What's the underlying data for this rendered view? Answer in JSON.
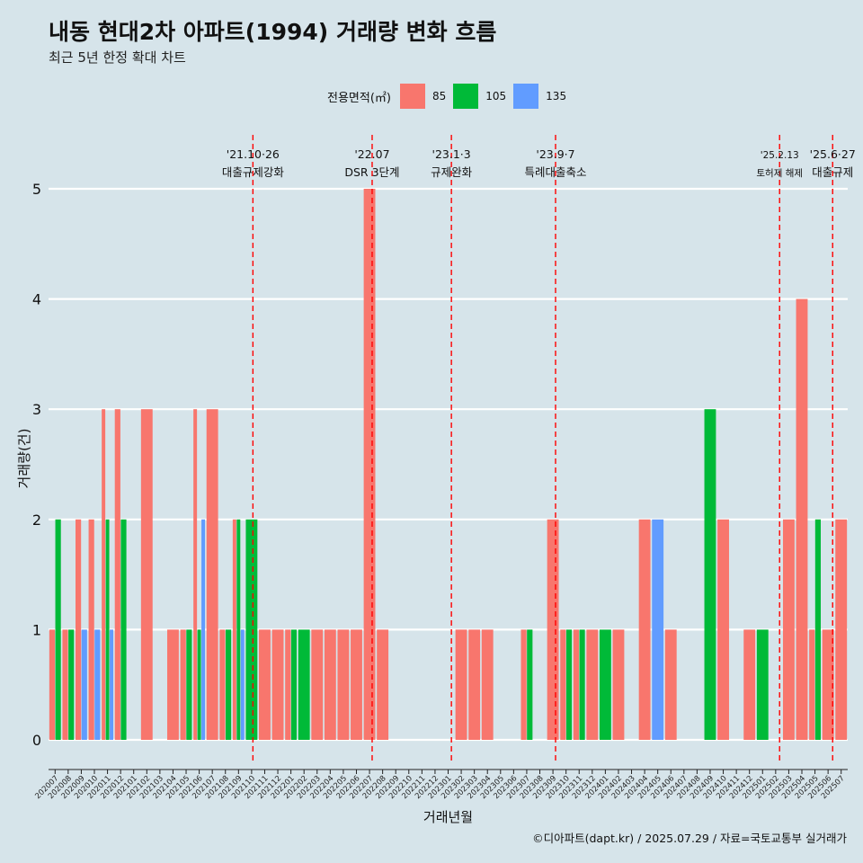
{
  "title": "내동 현대2차 아파트(1994) 거래량 변화 흐름",
  "subtitle": "최근 5년 한정 확대 차트",
  "caption": "©디아파트(dapt.kr) / 2025.07.29 / 자료=국토교통부 실거래가",
  "legend": {
    "title": "전용면적(㎡)",
    "items": [
      {
        "label": "85",
        "color": "#f8766d"
      },
      {
        "label": "105",
        "color": "#00ba38"
      },
      {
        "label": "135",
        "color": "#619cff"
      }
    ]
  },
  "chart_data": {
    "type": "bar",
    "xlabel": "거래년월",
    "ylabel": "거래량(건)",
    "ylim": [
      0,
      5
    ],
    "yticks": [
      0,
      1,
      2,
      3,
      4,
      5
    ],
    "categories": [
      "202007",
      "202008",
      "202009",
      "202010",
      "202011",
      "202012",
      "202101",
      "202102",
      "202103",
      "202104",
      "202105",
      "202106",
      "202107",
      "202108",
      "202109",
      "202110",
      "202111",
      "202112",
      "202201",
      "202202",
      "202203",
      "202204",
      "202205",
      "202206",
      "202207",
      "202208",
      "202209",
      "202210",
      "202211",
      "202212",
      "202301",
      "202302",
      "202303",
      "202304",
      "202305",
      "202306",
      "202307",
      "202308",
      "202309",
      "202310",
      "202311",
      "202312",
      "202401",
      "202402",
      "202403",
      "202404",
      "202405",
      "202406",
      "202407",
      "202408",
      "202409",
      "202410",
      "202411",
      "202412",
      "202501",
      "202502",
      "202503",
      "202504",
      "202505",
      "202506",
      "202507"
    ],
    "bars": [
      {
        "month": "202007",
        "size": "85",
        "value": 1,
        "slot": 0,
        "of": 2
      },
      {
        "month": "202007",
        "size": "105",
        "value": 2,
        "slot": 1,
        "of": 2
      },
      {
        "month": "202008",
        "size": "85",
        "value": 1,
        "slot": 0,
        "of": 2
      },
      {
        "month": "202008",
        "size": "105",
        "value": 1,
        "slot": 1,
        "of": 2
      },
      {
        "month": "202009",
        "size": "85",
        "value": 2,
        "slot": 0,
        "of": 2
      },
      {
        "month": "202009",
        "size": "135",
        "value": 1,
        "slot": 1,
        "of": 2
      },
      {
        "month": "202010",
        "size": "85",
        "value": 2,
        "slot": 0,
        "of": 2
      },
      {
        "month": "202010",
        "size": "135",
        "value": 1,
        "slot": 1,
        "of": 2
      },
      {
        "month": "202011",
        "size": "85",
        "value": 3,
        "slot": 0,
        "of": 3
      },
      {
        "month": "202011",
        "size": "105",
        "value": 2,
        "slot": 1,
        "of": 3
      },
      {
        "month": "202011",
        "size": "135",
        "value": 1,
        "slot": 2,
        "of": 3
      },
      {
        "month": "202012",
        "size": "85",
        "value": 3,
        "slot": 0,
        "of": 2
      },
      {
        "month": "202012",
        "size": "105",
        "value": 2,
        "slot": 1,
        "of": 2
      },
      {
        "month": "202102",
        "size": "85",
        "value": 3,
        "slot": 0,
        "of": 1
      },
      {
        "month": "202104",
        "size": "85",
        "value": 1,
        "slot": 0,
        "of": 1
      },
      {
        "month": "202105",
        "size": "85",
        "value": 1,
        "slot": 0,
        "of": 2
      },
      {
        "month": "202105",
        "size": "105",
        "value": 1,
        "slot": 1,
        "of": 2
      },
      {
        "month": "202106",
        "size": "85",
        "value": 3,
        "slot": 0,
        "of": 3
      },
      {
        "month": "202106",
        "size": "105",
        "value": 1,
        "slot": 1,
        "of": 3
      },
      {
        "month": "202106",
        "size": "135",
        "value": 2,
        "slot": 2,
        "of": 3
      },
      {
        "month": "202107",
        "size": "85",
        "value": 3,
        "slot": 0,
        "of": 1
      },
      {
        "month": "202108",
        "size": "85",
        "value": 1,
        "slot": 0,
        "of": 2
      },
      {
        "month": "202108",
        "size": "105",
        "value": 1,
        "slot": 1,
        "of": 2
      },
      {
        "month": "202109",
        "size": "85",
        "value": 2,
        "slot": 0,
        "of": 3
      },
      {
        "month": "202109",
        "size": "105",
        "value": 2,
        "slot": 1,
        "of": 3
      },
      {
        "month": "202109",
        "size": "135",
        "value": 1,
        "slot": 2,
        "of": 3
      },
      {
        "month": "202110",
        "size": "105",
        "value": 2,
        "slot": 0,
        "of": 1
      },
      {
        "month": "202111",
        "size": "85",
        "value": 1,
        "slot": 0,
        "of": 1
      },
      {
        "month": "202112",
        "size": "85",
        "value": 1,
        "slot": 0,
        "of": 1
      },
      {
        "month": "202201",
        "size": "85",
        "value": 1,
        "slot": 0,
        "of": 2
      },
      {
        "month": "202201",
        "size": "105",
        "value": 1,
        "slot": 1,
        "of": 2
      },
      {
        "month": "202202",
        "size": "105",
        "value": 1,
        "slot": 0,
        "of": 1
      },
      {
        "month": "202203",
        "size": "85",
        "value": 1,
        "slot": 0,
        "of": 1
      },
      {
        "month": "202204",
        "size": "85",
        "value": 1,
        "slot": 0,
        "of": 1
      },
      {
        "month": "202205",
        "size": "85",
        "value": 1,
        "slot": 0,
        "of": 1
      },
      {
        "month": "202206",
        "size": "85",
        "value": 1,
        "slot": 0,
        "of": 1
      },
      {
        "month": "202207",
        "size": "85",
        "value": 5,
        "slot": 0,
        "of": 1
      },
      {
        "month": "202208",
        "size": "85",
        "value": 1,
        "slot": 0,
        "of": 1
      },
      {
        "month": "202302",
        "size": "85",
        "value": 1,
        "slot": 0,
        "of": 1
      },
      {
        "month": "202303",
        "size": "85",
        "value": 1,
        "slot": 0,
        "of": 1
      },
      {
        "month": "202304",
        "size": "85",
        "value": 1,
        "slot": 0,
        "of": 1
      },
      {
        "month": "202307",
        "size": "85",
        "value": 1,
        "slot": 0,
        "of": 2
      },
      {
        "month": "202307",
        "size": "105",
        "value": 1,
        "slot": 1,
        "of": 2
      },
      {
        "month": "202309",
        "size": "85",
        "value": 2,
        "slot": 0,
        "of": 1
      },
      {
        "month": "202310",
        "size": "85",
        "value": 1,
        "slot": 0,
        "of": 2
      },
      {
        "month": "202310",
        "size": "105",
        "value": 1,
        "slot": 1,
        "of": 2
      },
      {
        "month": "202311",
        "size": "85",
        "value": 1,
        "slot": 0,
        "of": 2
      },
      {
        "month": "202311",
        "size": "105",
        "value": 1,
        "slot": 1,
        "of": 2
      },
      {
        "month": "202312",
        "size": "85",
        "value": 1,
        "slot": 0,
        "of": 1
      },
      {
        "month": "202401",
        "size": "105",
        "value": 1,
        "slot": 0,
        "of": 1
      },
      {
        "month": "202402",
        "size": "85",
        "value": 1,
        "slot": 0,
        "of": 1
      },
      {
        "month": "202404",
        "size": "85",
        "value": 2,
        "slot": 0,
        "of": 1
      },
      {
        "month": "202405",
        "size": "135",
        "value": 2,
        "slot": 0,
        "of": 1
      },
      {
        "month": "202406",
        "size": "85",
        "value": 1,
        "slot": 0,
        "of": 1
      },
      {
        "month": "202409",
        "size": "105",
        "value": 3,
        "slot": 0,
        "of": 1
      },
      {
        "month": "202410",
        "size": "85",
        "value": 2,
        "slot": 0,
        "of": 1
      },
      {
        "month": "202412",
        "size": "85",
        "value": 1,
        "slot": 0,
        "of": 1
      },
      {
        "month": "202501",
        "size": "105",
        "value": 1,
        "slot": 0,
        "of": 1
      },
      {
        "month": "202503",
        "size": "85",
        "value": 2,
        "slot": 0,
        "of": 1
      },
      {
        "month": "202504",
        "size": "85",
        "value": 4,
        "slot": 0,
        "of": 1
      },
      {
        "month": "202505",
        "size": "85",
        "value": 1,
        "slot": 0,
        "of": 2
      },
      {
        "month": "202505",
        "size": "105",
        "value": 2,
        "slot": 1,
        "of": 2
      },
      {
        "month": "202506",
        "size": "85",
        "value": 1,
        "slot": 0,
        "of": 1
      },
      {
        "month": "202507",
        "size": "85",
        "value": 2,
        "slot": 0,
        "of": 1
      }
    ],
    "events": [
      {
        "x": 15.6,
        "label1": "'21.10·26",
        "label2": "대출규제강화"
      },
      {
        "x": 24.7,
        "label1": "'22.07",
        "label2": "DSR 3단계"
      },
      {
        "x": 30.75,
        "label1": "'23.1·3",
        "label2": "규제완화"
      },
      {
        "x": 38.7,
        "label1": "'23.9·7",
        "label2": "특례대출축소"
      },
      {
        "x": 55.8,
        "label1": "'25.2.13",
        "label2": "토허제 해제"
      },
      {
        "x": 59.85,
        "label1": "'25.6·27",
        "label2": "대출규제"
      }
    ]
  }
}
